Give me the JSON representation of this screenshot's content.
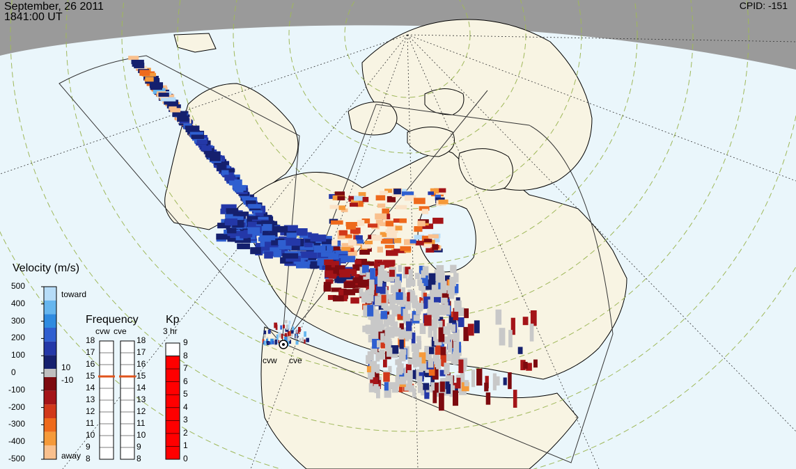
{
  "header": {
    "date": "September, 26 2011",
    "time": "1841:00 UT",
    "cpid": "CPID:  -151"
  },
  "velocity": {
    "title": "Velocity (m/s)",
    "ticks": [
      "500",
      "400",
      "300",
      "200",
      "100",
      "0",
      "-100",
      "-200",
      "-300",
      "-400",
      "-500"
    ],
    "toward": "toward",
    "away": "away",
    "near_pos": "10",
    "near_neg": "-10",
    "colors": [
      "#fbe2c6",
      "#f9c08d",
      "#f59a3a",
      "#ee6a1c",
      "#d1381a",
      "#a41418",
      "#7d0a0f",
      "#15206e",
      "#2438a8",
      "#2f5fd0",
      "#2f8be0",
      "#66b6ee",
      "#b6dcf8"
    ]
  },
  "frequency": {
    "title": "Frequency",
    "sub_left": "cvw",
    "sub_right": "cve",
    "ticks": [
      "18",
      "17",
      "16",
      "15",
      "14",
      "13",
      "12",
      "11",
      "10",
      "9",
      "8"
    ],
    "cvw_value_mhz": 15,
    "cve_value_mhz": 15
  },
  "kp": {
    "title": "Kp",
    "sub": "3 hr",
    "ticks": [
      "9",
      "8",
      "7",
      "6",
      "5",
      "4",
      "3",
      "2",
      "1",
      "0"
    ],
    "value": 8
  },
  "radars": [
    {
      "name": "cvw"
    },
    {
      "name": "cve"
    }
  ],
  "colors": {
    "ocean": "#eaf6fb",
    "land": "#f8f4e3",
    "night": "#9a9a9a",
    "ground_scatter": "#c8c8c8",
    "grid_green": "#9fb85a",
    "kp_fill": "#ff0000"
  }
}
